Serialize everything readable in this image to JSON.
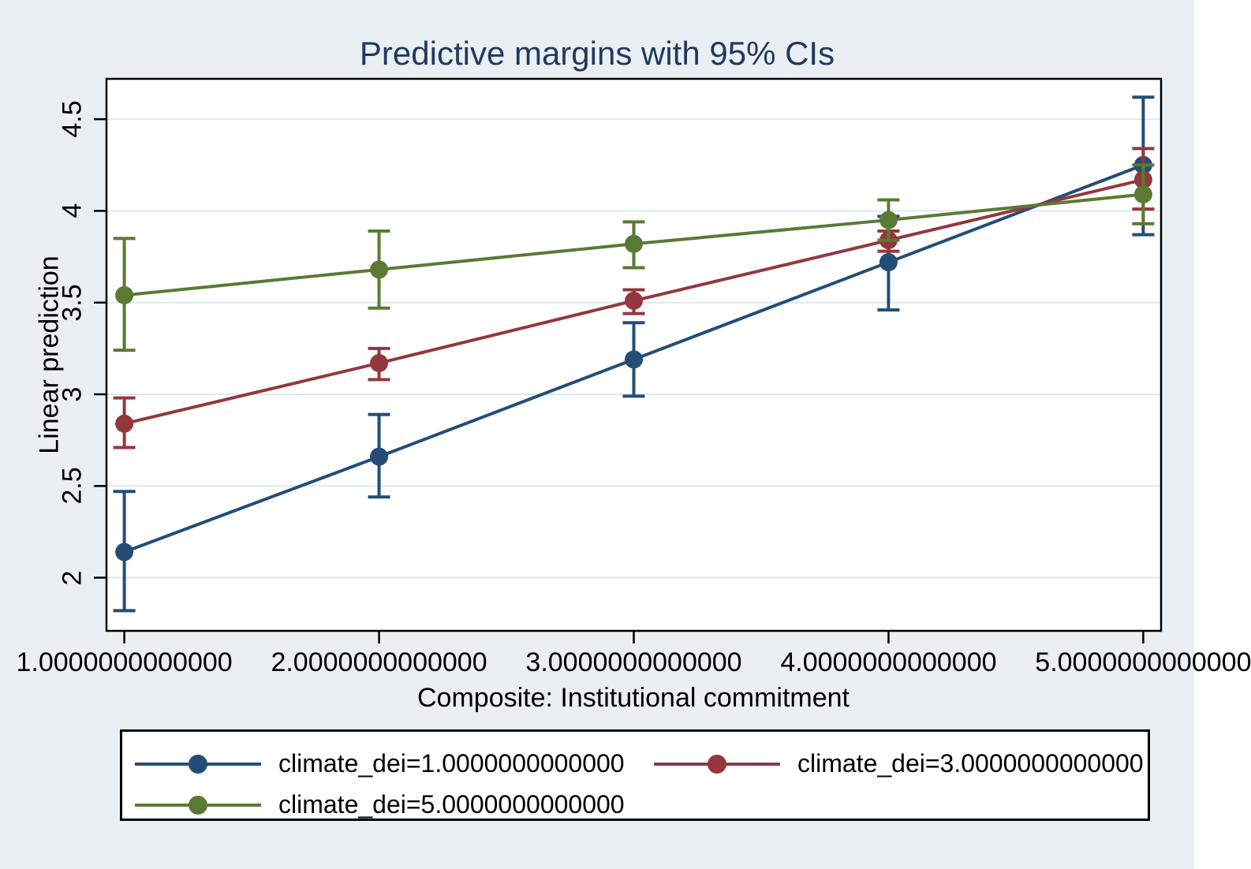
{
  "chart_data": {
    "type": "line",
    "title": "Predictive margins with 95% CIs",
    "xlabel": "Composite: Institutional commitment",
    "ylabel": "Linear prediction",
    "x": [
      1,
      2,
      3,
      4,
      5
    ],
    "x_tick_labels": [
      "1.0000000000000",
      "2.0000000000000",
      "3.0000000000000",
      "4.0000000000000",
      "5.0000000000000"
    ],
    "y_ticks": [
      2,
      2.5,
      3,
      3.5,
      4,
      4.5
    ],
    "y_tick_labels": [
      "2",
      "2.5",
      "3",
      "3.5",
      "4",
      "4.5"
    ],
    "xlim": [
      0.93,
      5.07
    ],
    "ylim": [
      1.71,
      4.72
    ],
    "grid": "horizontal",
    "legend_position": "bottom",
    "series": [
      {
        "name": "climate_dei=1.0000000000000",
        "color": "#234d77",
        "values": [
          2.14,
          2.66,
          3.19,
          3.72,
          4.25
        ],
        "ci_low": [
          1.82,
          2.44,
          2.99,
          3.46,
          3.87
        ],
        "ci_high": [
          2.47,
          2.89,
          3.39,
          3.97,
          4.62
        ]
      },
      {
        "name": "climate_dei=3.0000000000000",
        "color": "#93383e",
        "values": [
          2.84,
          3.17,
          3.51,
          3.84,
          4.17
        ],
        "ci_low": [
          2.71,
          3.08,
          3.44,
          3.78,
          4.01
        ],
        "ci_high": [
          2.98,
          3.25,
          3.57,
          3.89,
          4.34
        ]
      },
      {
        "name": "climate_dei=5.0000000000000",
        "color": "#5a7a33",
        "values": [
          3.54,
          3.68,
          3.82,
          3.95,
          4.09
        ],
        "ci_low": [
          3.24,
          3.47,
          3.69,
          3.84,
          3.93
        ],
        "ci_high": [
          3.85,
          3.89,
          3.94,
          4.06,
          4.25
        ]
      }
    ]
  },
  "colors": {
    "background": "#e9eff3",
    "plot_background": "#ffffff",
    "gridline": "#dde9ef",
    "axis": "#000000",
    "title": "#22395f"
  }
}
